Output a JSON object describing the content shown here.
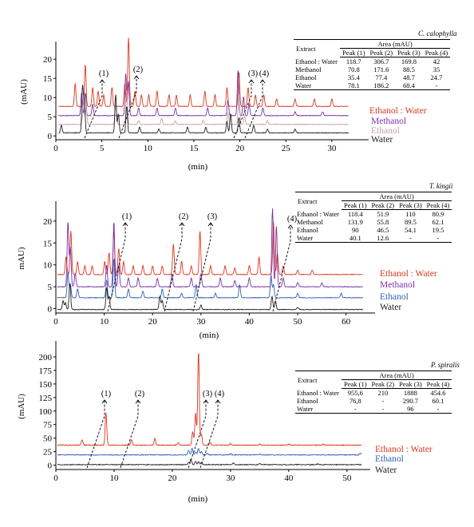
{
  "figure": {
    "panels": [
      {
        "species": "C. calophylla",
        "ylabel": "(mAU)",
        "xlabel": "(min)",
        "table": {
          "col_extract": "Extract",
          "group_header": "Area (mAU)",
          "columns": [
            "Peak (1)",
            "Peak (2)",
            "Peak (3)",
            "Peak (4)"
          ],
          "rows": [
            {
              "extract": "Ethanol : Water",
              "values": [
                "118.7",
                "306.7",
                "169.8",
                "42"
              ]
            },
            {
              "extract": "Methanol",
              "values": [
                "70.8",
                "171.6",
                "88.5",
                "35"
              ]
            },
            {
              "extract": "Ethanol",
              "values": [
                "35.4",
                "77.4",
                "48.7",
                "24.7"
              ]
            },
            {
              "extract": "Water",
              "values": [
                "78.1",
                "186.2",
                "68.4",
                "-"
              ]
            }
          ]
        }
      },
      {
        "species": "T. kingii",
        "ylabel": "mAU)",
        "xlabel": "(min)",
        "table": {
          "col_extract": "Extract",
          "group_header": "Area (mAU)",
          "columns": [
            "Peak (1)",
            "Peak (2)",
            "Peak (3)",
            "Peak (4)"
          ],
          "rows": [
            {
              "extract": "Ethanol : Water",
              "values": [
                "118.4",
                "51.9",
                "110",
                "80.9"
              ]
            },
            {
              "extract": "Methanol",
              "values": [
                "131.9",
                "55.8",
                "89.5",
                "62.1"
              ]
            },
            {
              "extract": "Ethanol",
              "values": [
                "90",
                "46.5",
                "54.1",
                "19.5"
              ]
            },
            {
              "extract": "Water",
              "values": [
                "40.1",
                "12.6",
                "-",
                "-"
              ]
            }
          ]
        }
      },
      {
        "species": "P. spiralis",
        "ylabel": "(mAU)",
        "xlabel": "(min)",
        "table": {
          "col_extract": "Extract",
          "group_header": "Area (mAU)",
          "columns": [
            "Peak (1)",
            "Peak (2)",
            "Peak (3)",
            "Peak (4)"
          ],
          "rows": [
            {
              "extract": "Ethanol : Water",
              "values": [
                "955,6",
                "210",
                "1888",
                "454.6"
              ]
            },
            {
              "extract": "Ethanol",
              "values": [
                "76,8",
                "-",
                "290.7",
                "60.1"
              ]
            },
            {
              "extract": "Water",
              "values": [
                "-",
                "-",
                "96",
                "-"
              ]
            }
          ]
        }
      }
    ]
  },
  "chart_data": [
    {
      "type": "line",
      "xlabel": "(min)",
      "ylabel": "(mAU)",
      "xlim": [
        0,
        34
      ],
      "ylim": [
        -1,
        24
      ],
      "x_ticks": [
        0,
        5,
        10,
        15,
        20,
        25,
        30
      ],
      "y_ticks": [
        0,
        5,
        10,
        15,
        20
      ],
      "peak_labels": [
        {
          "label": "(1)",
          "x": 4.8
        },
        {
          "label": "(2)",
          "x": 8.0
        },
        {
          "label": "(3)",
          "x": 20.0
        },
        {
          "label": "(4)",
          "x": 21.1
        }
      ],
      "series": [
        {
          "name": "Ethanol : Water",
          "color": "#d9381e",
          "baseline": 7.7,
          "x_end": 31.8,
          "peaks": [
            [
              2.1,
              6
            ],
            [
              3.2,
              11
            ],
            [
              4.0,
              5
            ],
            [
              4.6,
              4
            ],
            [
              5.2,
              3
            ],
            [
              6.1,
              5
            ],
            [
              7.5,
              6
            ],
            [
              7.9,
              18
            ],
            [
              8.6,
              4
            ],
            [
              9.3,
              3
            ],
            [
              10.1,
              3
            ],
            [
              11.0,
              4
            ],
            [
              12.3,
              3
            ],
            [
              13.1,
              3
            ],
            [
              14.6,
              3
            ],
            [
              16.2,
              4
            ],
            [
              17.3,
              3
            ],
            [
              18.6,
              5
            ],
            [
              19.9,
              9
            ],
            [
              20.9,
              5
            ],
            [
              21.7,
              3
            ],
            [
              22.6,
              3
            ],
            [
              24.0,
              2
            ],
            [
              26.0,
              2
            ],
            [
              28.1,
              2
            ],
            [
              30.0,
              2
            ]
          ]
        },
        {
          "name": "Methanol",
          "color": "#7b2fa8",
          "baseline": 5.3,
          "x_end": 31.8,
          "peaks": [
            [
              2.8,
              6
            ],
            [
              3.2,
              6
            ],
            [
              4.0,
              3
            ],
            [
              7.6,
              11
            ],
            [
              7.9,
              9
            ],
            [
              9.0,
              2
            ],
            [
              11.0,
              2
            ],
            [
              13.0,
              2
            ],
            [
              16.5,
              2
            ],
            [
              18.7,
              4
            ],
            [
              19.8,
              12
            ],
            [
              20.4,
              5
            ],
            [
              21.0,
              3
            ],
            [
              22.5,
              2
            ],
            [
              26.0,
              1
            ],
            [
              29.0,
              1
            ]
          ]
        },
        {
          "name": "Ethanol",
          "color": "#c89fa5",
          "baseline": 3.0,
          "x_end": 31.8,
          "peaks": [
            [
              3.0,
              7
            ],
            [
              3.3,
              4
            ],
            [
              6.5,
              5
            ],
            [
              7.7,
              9
            ],
            [
              9.0,
              1
            ],
            [
              11.5,
              1.5
            ],
            [
              13.0,
              1
            ],
            [
              16.0,
              1
            ],
            [
              18.7,
              3
            ],
            [
              19.9,
              8
            ],
            [
              20.5,
              2
            ],
            [
              23.0,
              1
            ]
          ]
        },
        {
          "name": "Water",
          "color": "#222222",
          "baseline": 0.8,
          "x_end": 31.8,
          "peaks": [
            [
              0.6,
              2
            ],
            [
              2.9,
              12
            ],
            [
              3.1,
              8
            ],
            [
              6.5,
              10
            ],
            [
              6.8,
              5
            ],
            [
              7.7,
              7
            ],
            [
              9.1,
              1.5
            ],
            [
              11.2,
              1
            ],
            [
              14.3,
              1.5
            ],
            [
              16.3,
              1.5
            ],
            [
              18.6,
              3
            ],
            [
              19.0,
              5
            ],
            [
              19.9,
              4
            ],
            [
              21.5,
              2
            ],
            [
              23.0,
              1
            ],
            [
              26.0,
              1
            ]
          ]
        }
      ]
    },
    {
      "type": "line",
      "xlabel": "(min)",
      "ylabel": "mAU)",
      "xlim": [
        0,
        66
      ],
      "ylim": [
        -1,
        24
      ],
      "x_ticks": [
        0,
        10,
        20,
        30,
        40,
        50,
        60
      ],
      "y_ticks": [
        0,
        5,
        10,
        15,
        20
      ],
      "peak_labels": [
        {
          "label": "(1)",
          "x": 13.2
        },
        {
          "label": "(2)",
          "x": 24.6
        },
        {
          "label": "(3)",
          "x": 30.6
        },
        {
          "label": "(4)",
          "x": 46.3
        }
      ],
      "series": [
        {
          "name": "Ethanol : Water",
          "color": "#d9381e",
          "baseline": 7.8,
          "x_end": 63.5,
          "peaks": [
            [
              2.1,
              4
            ],
            [
              3.1,
              10
            ],
            [
              4.5,
              3
            ],
            [
              6.0,
              2
            ],
            [
              7.5,
              2
            ],
            [
              10.1,
              3
            ],
            [
              11.0,
              5
            ],
            [
              12.0,
              10
            ],
            [
              13.0,
              6
            ],
            [
              14.0,
              3
            ],
            [
              16.0,
              2
            ],
            [
              18.0,
              2
            ],
            [
              20.0,
              2
            ],
            [
              22.0,
              2
            ],
            [
              24.3,
              7
            ],
            [
              26.0,
              3
            ],
            [
              28.0,
              2
            ],
            [
              29.8,
              10
            ],
            [
              32.0,
              2
            ],
            [
              35.0,
              2
            ],
            [
              37.0,
              1.5
            ],
            [
              40.0,
              2
            ],
            [
              42.0,
              4
            ],
            [
              45.0,
              12
            ],
            [
              45.8,
              5
            ],
            [
              47.0,
              2
            ],
            [
              50.0,
              1
            ],
            [
              53.0,
              1
            ]
          ]
        },
        {
          "name": "Methanol",
          "color": "#7b2fa8",
          "baseline": 5.0,
          "x_end": 63.5,
          "peaks": [
            [
              2.5,
              15
            ],
            [
              3.0,
              9
            ],
            [
              4.0,
              3
            ],
            [
              10.5,
              5
            ],
            [
              12.0,
              15
            ],
            [
              13.0,
              5
            ],
            [
              15.0,
              2
            ],
            [
              17.0,
              2
            ],
            [
              21.0,
              2
            ],
            [
              24.0,
              3
            ],
            [
              28.0,
              2
            ],
            [
              30.0,
              3
            ],
            [
              34.0,
              2
            ],
            [
              37.0,
              1.5
            ],
            [
              40.0,
              2
            ],
            [
              44.8,
              18
            ],
            [
              45.6,
              14
            ],
            [
              47.0,
              2
            ],
            [
              50.0,
              1
            ],
            [
              55.0,
              1
            ]
          ]
        },
        {
          "name": "Ethanol",
          "color": "#3060b8",
          "baseline": 2.5,
          "x_end": 63.5,
          "peaks": [
            [
              2.5,
              6
            ],
            [
              3.0,
              3
            ],
            [
              4.5,
              2
            ],
            [
              10.5,
              4
            ],
            [
              12.0,
              9
            ],
            [
              15.0,
              2
            ],
            [
              18.0,
              1.5
            ],
            [
              22.0,
              2
            ],
            [
              26.0,
              1
            ],
            [
              29.0,
              3
            ],
            [
              33.0,
              1
            ],
            [
              38.0,
              3
            ],
            [
              44.5,
              5
            ],
            [
              45.0,
              3
            ],
            [
              50.0,
              1
            ],
            [
              59.0,
              1
            ]
          ]
        },
        {
          "name": "Water",
          "color": "#222222",
          "baseline": -0.2,
          "x_end": 63.5,
          "peaks": [
            [
              1.5,
              2
            ],
            [
              2.0,
              1.5
            ],
            [
              2.9,
              6
            ],
            [
              10.5,
              5
            ],
            [
              11.0,
              3
            ],
            [
              21.5,
              3
            ],
            [
              22.0,
              2
            ],
            [
              30.0,
              1
            ],
            [
              44.7,
              3
            ],
            [
              45.4,
              2
            ],
            [
              50.0,
              0.5
            ]
          ]
        }
      ]
    },
    {
      "type": "line",
      "xlabel": "(min)",
      "ylabel": "(mAU)",
      "xlim": [
        0,
        54
      ],
      "ylim": [
        -8,
        225
      ],
      "x_ticks": [
        0,
        10,
        20,
        30,
        40,
        50
      ],
      "y_ticks": [
        0,
        25,
        50,
        75,
        100,
        125,
        150,
        175,
        200
      ],
      "peak_labels": [
        {
          "label": "(1)",
          "x": 8.7
        },
        {
          "label": "(2)",
          "x": 13.7
        },
        {
          "label": "(3)",
          "x": 25.3
        },
        {
          "label": "(4)",
          "x": 27.3
        }
      ],
      "series": [
        {
          "name": "Ethanol : Water",
          "color": "#d9381e",
          "baseline": 37,
          "x_end": 52.5,
          "peaks": [
            [
              4.5,
              10
            ],
            [
              8.6,
              60
            ],
            [
              13.0,
              10
            ],
            [
              17.0,
              12
            ],
            [
              21.0,
              5
            ],
            [
              23.5,
              25
            ],
            [
              24.0,
              60
            ],
            [
              24.5,
              175
            ],
            [
              25.0,
              20
            ],
            [
              26.5,
              5
            ],
            [
              30.0,
              3
            ],
            [
              35.0,
              2
            ],
            [
              40.0,
              2
            ],
            [
              46.0,
              2
            ]
          ]
        },
        {
          "name": "Ethanol",
          "color": "#3060b8",
          "baseline": 19,
          "x_end": 52.5,
          "peaks": [
            [
              22.8,
              8
            ],
            [
              23.4,
              12
            ],
            [
              24.0,
              5
            ],
            [
              24.5,
              12
            ],
            [
              25.0,
              6
            ],
            [
              26.0,
              3
            ],
            [
              30.0,
              2
            ],
            [
              35.0,
              1.5
            ],
            [
              52.3,
              3
            ]
          ]
        },
        {
          "name": "Water",
          "color": "#222222",
          "baseline": 1,
          "x_end": 52.5,
          "peaks": [
            [
              22.8,
              4
            ],
            [
              23.2,
              10
            ],
            [
              24.0,
              6
            ],
            [
              24.5,
              5
            ],
            [
              25.0,
              4
            ],
            [
              30.5,
              3
            ],
            [
              35.0,
              2
            ],
            [
              45.0,
              1.5
            ]
          ]
        }
      ]
    }
  ]
}
